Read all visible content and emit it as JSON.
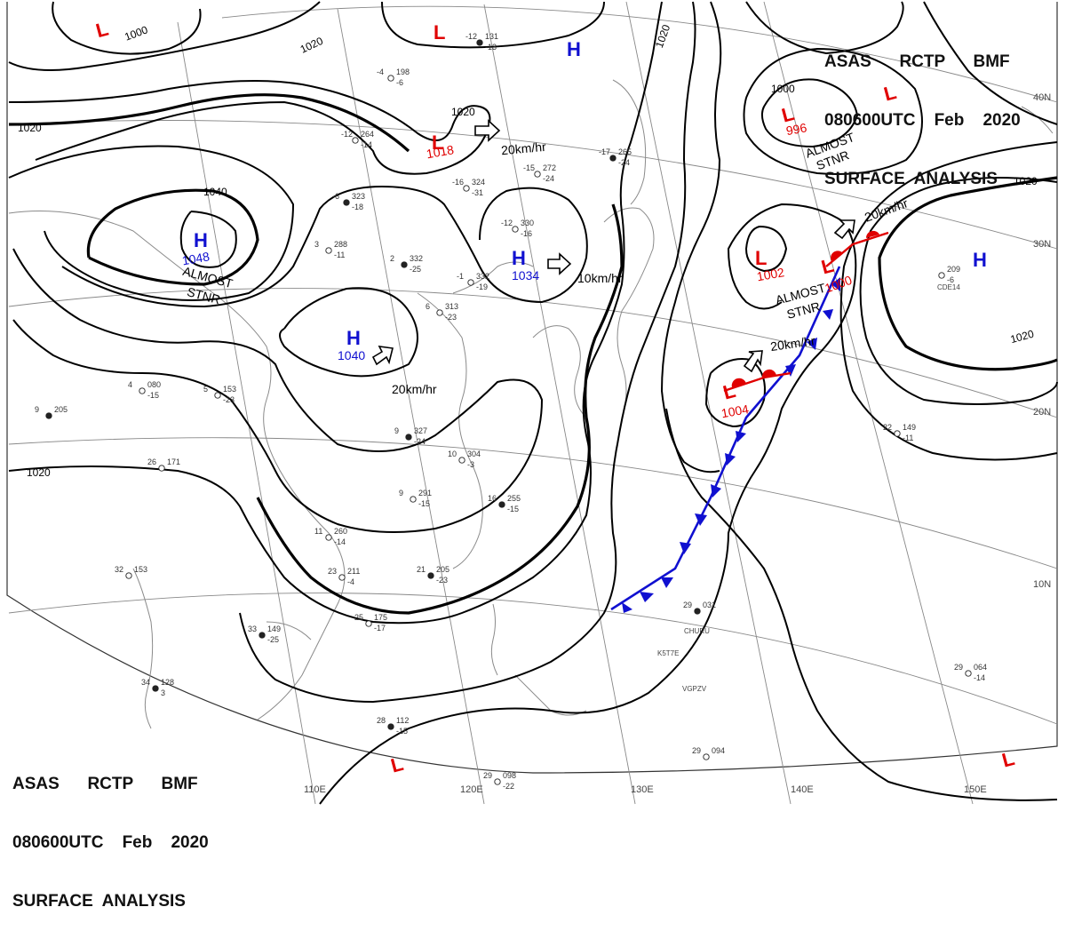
{
  "header": {
    "line1": "ASAS      RCTP      BMF",
    "line2": "080600UTC    Feb    2020",
    "line3": "SURFACE  ANALYSIS"
  },
  "colors": {
    "low": "#e00000",
    "high": "#1010d0",
    "cold_front": "#1010d0",
    "warm_front": "#e00000",
    "isobar": "#000000",
    "grid": "#777777",
    "coast": "#888888"
  },
  "longitude_labels": [
    "110E",
    "120E",
    "130E",
    "140E",
    "150E"
  ],
  "latitude_labels": [
    "40N",
    "30N",
    "20N",
    "10N"
  ],
  "pressure_centers": [
    {
      "type": "L",
      "value": ""
    },
    {
      "type": "L",
      "value": ""
    },
    {
      "type": "L",
      "value": "1018"
    },
    {
      "type": "H",
      "value": ""
    },
    {
      "type": "L",
      "value": "996"
    },
    {
      "type": "L",
      "value": ""
    },
    {
      "type": "H",
      "value": "1048"
    },
    {
      "type": "H",
      "value": "1034"
    },
    {
      "type": "H",
      "value": "1040"
    },
    {
      "type": "L",
      "value": "1002"
    },
    {
      "type": "L",
      "value": "1000"
    },
    {
      "type": "L",
      "value": "1004"
    },
    {
      "type": "H",
      "value": ""
    },
    {
      "type": "L",
      "value": ""
    },
    {
      "type": "L",
      "value": ""
    }
  ],
  "isobar_labels": [
    "1000",
    "1020",
    "1020",
    "1020",
    "1040",
    "1020",
    "1000",
    "1020",
    "1020",
    "1020"
  ],
  "movement_labels": [
    "20km/hr",
    "10km/hr",
    "20km/hr",
    "20km/hr",
    "20km/hr"
  ],
  "annotations": [
    "ALMOST",
    "STNR",
    "ALMOST",
    "STNR",
    "ALMOST",
    "STNR"
  ],
  "station_plots": [
    {
      "temp": "-12",
      "value": "131",
      "dew": "-13"
    },
    {
      "temp": "-4",
      "value": "198",
      "dew": "-6"
    },
    {
      "temp": "-12",
      "value": "264",
      "dew": "-14"
    },
    {
      "temp": "-17",
      "value": "265",
      "dew": "-24"
    },
    {
      "temp": "-15",
      "value": "272",
      "dew": "-24"
    },
    {
      "temp": "-16",
      "value": "324",
      "dew": "-31"
    },
    {
      "temp": "-6",
      "value": "323",
      "dew": "-18"
    },
    {
      "temp": "-12",
      "value": "330",
      "dew": "-16"
    },
    {
      "temp": "3",
      "value": "288",
      "dew": "-11"
    },
    {
      "temp": "2",
      "value": "332",
      "dew": "-25"
    },
    {
      "temp": "-1",
      "value": "332",
      "dew": "-19"
    },
    {
      "temp": "6",
      "value": "313",
      "dew": "-23"
    },
    {
      "temp": "9",
      "value": "327",
      "dew": "-24"
    },
    {
      "temp": "10",
      "value": "304",
      "dew": "-3"
    },
    {
      "temp": "9",
      "value": "291",
      "dew": "-15"
    },
    {
      "temp": "16",
      "value": "255",
      "dew": "-15"
    },
    {
      "temp": "11",
      "value": "260",
      "dew": "-14"
    },
    {
      "temp": "23",
      "value": "211",
      "dew": "-4"
    },
    {
      "temp": "21",
      "value": "205",
      "dew": "-23"
    },
    {
      "temp": "25",
      "value": "175",
      "dew": "-17"
    },
    {
      "temp": "32",
      "value": "153",
      "dew": ""
    },
    {
      "temp": "33",
      "value": "149",
      "dew": "-25"
    },
    {
      "temp": "26",
      "value": "171",
      "dew": ""
    },
    {
      "temp": "22",
      "value": "149",
      "dew": "-11"
    },
    {
      "temp": "29",
      "value": "031",
      "dew": ""
    },
    {
      "temp": "29",
      "value": "064",
      "dew": "-14"
    },
    {
      "temp": "",
      "value": "209",
      "dew": "-6"
    },
    {
      "temp": "28",
      "value": "112",
      "dew": "-15"
    },
    {
      "temp": "29",
      "value": "098",
      "dew": "-22"
    },
    {
      "temp": "29",
      "value": "094",
      "dew": ""
    },
    {
      "temp": "34",
      "value": "128",
      "dew": "3"
    },
    {
      "temp": "4",
      "value": "080",
      "dew": "-15"
    },
    {
      "temp": "5",
      "value": "153",
      "dew": "-23"
    },
    {
      "temp": "9",
      "value": "205",
      "dew": ""
    }
  ],
  "ship_ids": [
    "CDE14",
    "CHURU",
    "K5T7E",
    "VGPZV"
  ]
}
